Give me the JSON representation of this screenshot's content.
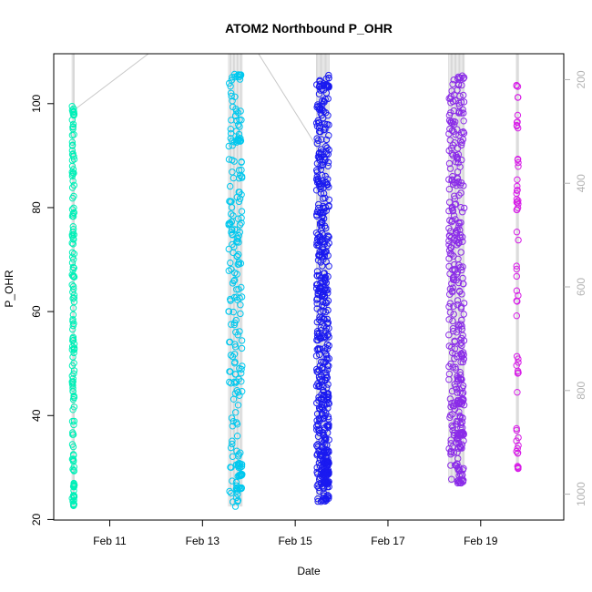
{
  "chart_data": {
    "type": "scatter",
    "title": "ATOM2 Northbound P_OHR",
    "xlabel": "Date",
    "ylabel": "P_OHR",
    "xlim": [
      "2025-02-09 19:00",
      "2025-02-20 19:00"
    ],
    "ylim": [
      19.9,
      109.6
    ],
    "x_ticks": [
      {
        "date": "2025-02-11",
        "label": "Feb 11"
      },
      {
        "date": "2025-02-13",
        "label": "Feb 13"
      },
      {
        "date": "2025-02-15",
        "label": "Feb 15"
      },
      {
        "date": "2025-02-17",
        "label": "Feb 17"
      },
      {
        "date": "2025-02-19",
        "label": "Feb 19"
      }
    ],
    "y_ticks": [
      20,
      40,
      60,
      80,
      100
    ],
    "secondary_axis": {
      "side": "right",
      "color": "#b3b3b3",
      "reversed": true,
      "ylim": [
        1050,
        150
      ],
      "ticks": [
        200,
        400,
        600,
        800,
        1000
      ]
    },
    "track_color": "#c8c8c8",
    "grid": false,
    "legend": "none",
    "series": [
      {
        "color": "#00f0b8",
        "casts": [
          {
            "x_start": "2025-02-10 04:30",
            "x_end": "2025-02-10 05:40",
            "y_min": 22.5,
            "y_max": 99.5,
            "n": 140,
            "clusters": [
              [
                24.5,
                10
              ],
              [
                26.5,
                8
              ],
              [
                22.8,
                6
              ],
              [
                98,
                5
              ]
            ]
          }
        ],
        "connector": [
          [
            "2025-02-10 05:40",
            98.8
          ],
          [
            "2025-02-11 20:00",
            109.6
          ]
        ]
      },
      {
        "color": "#00c8ee",
        "casts": [
          {
            "x_start": "2025-02-13 13:30",
            "x_end": "2025-02-13 20:30",
            "y_min": 22.5,
            "y_max": 106,
            "n": 190,
            "clusters": [
              [
                28.5,
                12
              ],
              [
                26.2,
                10
              ],
              [
                30.5,
                8
              ],
              [
                93,
                8
              ],
              [
                105.5,
                6
              ]
            ]
          }
        ],
        "connector": [
          [
            "2025-02-14 05:00",
            109.6
          ],
          [
            "2025-02-15 11:30",
            91.5
          ]
        ]
      },
      {
        "color": "#1a1af0",
        "casts": [
          {
            "x_start": "2025-02-15 11:00",
            "x_end": "2025-02-15 17:30",
            "y_min": 23,
            "y_max": 105.5,
            "n": 470,
            "clusters": [
              [
                29,
                25
              ],
              [
                27,
                15
              ],
              [
                31,
                15
              ],
              [
                24,
                10
              ],
              [
                103.5,
                12
              ],
              [
                33,
                10
              ]
            ]
          }
        ]
      },
      {
        "color": "#8a2be8",
        "casts": [
          {
            "x_start": "2025-02-18 07:30",
            "x_end": "2025-02-18 15:30",
            "y_min": 27,
            "y_max": 105.5,
            "n": 330,
            "clusters": [
              [
                36.5,
                15
              ],
              [
                42.5,
                12
              ],
              [
                27.3,
                10
              ],
              [
                47,
                8
              ],
              [
                105,
                6
              ]
            ]
          }
        ]
      },
      {
        "color": "#d81ee8",
        "casts": [
          {
            "x_start": "2025-02-19 18:30",
            "x_end": "2025-02-19 19:30",
            "y_min": 29.5,
            "y_max": 104,
            "n": 55,
            "clusters": [
              [
                30,
                6
              ]
            ]
          }
        ]
      }
    ]
  }
}
